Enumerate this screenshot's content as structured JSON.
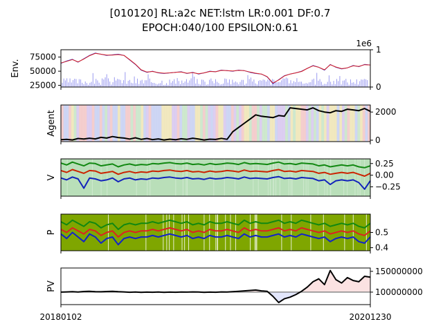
{
  "chart_data": [
    {
      "panel": "env",
      "type": "line",
      "title_line1": "[010120] RL:a2c NET:lstm LR:0.001 DF:0.7",
      "title_line2": "EPOCH:040/100 EPSILON:0.61",
      "ylabel": "Env.",
      "ylim": [
        22000,
        88000
      ],
      "y_ticks": [
        "75000",
        "50000",
        "25000"
      ],
      "y_tick_values": [
        75000,
        50000,
        25000
      ],
      "right_ylim": [
        0,
        1
      ],
      "right_ticks": [
        "1",
        "0"
      ],
      "right_tick_values": [
        1,
        0
      ],
      "right_offset_label": "1e6",
      "series": [
        {
          "name": "price",
          "color": "#2222cc",
          "values": [
            64000,
            68000,
            71000,
            66000,
            72000,
            78000,
            82000,
            80000,
            78000,
            79000,
            80000,
            78000,
            70000,
            62000,
            52000,
            48000,
            50000,
            47000,
            46000,
            47000,
            48000,
            49000,
            46000,
            48000,
            45000,
            47000,
            50000,
            49000,
            52000,
            51000,
            50000,
            52000,
            51000,
            48000,
            46000,
            45000,
            40000,
            28000,
            35000,
            42000,
            45000,
            47000,
            50000,
            55000,
            60000,
            57000,
            52000,
            62000,
            57000,
            54000,
            56000,
            60000,
            58000,
            62000,
            61000
          ]
        },
        {
          "name": "trend",
          "color": "#dd2222",
          "values": [
            64500,
            67500,
            70500,
            66500,
            71500,
            77500,
            81500,
            80000,
            78500,
            78500,
            79500,
            78000,
            70500,
            62500,
            52500,
            48500,
            49500,
            47500,
            46500,
            47000,
            48000,
            48500,
            46500,
            47500,
            45500,
            47000,
            49500,
            49000,
            51500,
            51000,
            50500,
            51500,
            51000,
            48500,
            46500,
            45000,
            40500,
            29000,
            34500,
            41500,
            45000,
            47000,
            49500,
            55000,
            59500,
            57000,
            52500,
            61500,
            57500,
            54500,
            56000,
            59500,
            58500,
            61500,
            61000
          ]
        }
      ]
    },
    {
      "panel": "agent",
      "type": "line",
      "ylabel": "Agent",
      "ylim": [
        -100,
        2500
      ],
      "y_ticks": [
        "2000",
        "0"
      ],
      "y_tick_values": [
        2000,
        0
      ],
      "series": [
        {
          "name": "agent",
          "color": "#000000",
          "values": [
            30,
            60,
            20,
            120,
            80,
            140,
            90,
            200,
            150,
            260,
            190,
            150,
            80,
            170,
            60,
            120,
            40,
            90,
            20,
            70,
            30,
            100,
            60,
            140,
            80,
            20,
            70,
            50,
            130,
            60,
            600,
            900,
            1200,
            1500,
            1800,
            1700,
            1650,
            1600,
            1750,
            1700,
            2300,
            2250,
            2200,
            2150,
            2300,
            2100,
            2000,
            1950,
            2100,
            2050,
            2200,
            2150,
            2100,
            2250,
            2050
          ]
        }
      ]
    },
    {
      "panel": "V",
      "type": "line",
      "ylabel": "V",
      "ylim": [
        -0.45,
        0.35
      ],
      "y_ticks": [
        "0.25",
        "0.00",
        "−0.25"
      ],
      "y_tick_values": [
        0.25,
        0.0,
        -0.25
      ],
      "series": [
        {
          "name": "upper",
          "color": "#118811",
          "values": [
            0.26,
            0.22,
            0.28,
            0.24,
            0.2,
            0.26,
            0.25,
            0.2,
            0.22,
            0.24,
            0.18,
            0.22,
            0.24,
            0.21,
            0.23,
            0.22,
            0.25,
            0.24,
            0.26,
            0.27,
            0.25,
            0.24,
            0.26,
            0.23,
            0.24,
            0.22,
            0.25,
            0.23,
            0.24,
            0.26,
            0.25,
            0.23,
            0.27,
            0.24,
            0.25,
            0.24,
            0.23,
            0.26,
            0.28,
            0.24,
            0.25,
            0.23,
            0.26,
            0.25,
            0.24,
            0.2,
            0.22,
            0.18,
            0.2,
            0.22,
            0.2,
            0.22,
            0.18,
            0.16,
            0.2
          ]
        },
        {
          "name": "mean",
          "color": "#cc2200",
          "values": [
            0.1,
            0.06,
            0.12,
            0.08,
            0.04,
            0.1,
            0.09,
            0.04,
            0.06,
            0.08,
            0.02,
            0.06,
            0.08,
            0.05,
            0.07,
            0.06,
            0.09,
            0.08,
            0.1,
            0.11,
            0.09,
            0.08,
            0.1,
            0.07,
            0.08,
            0.06,
            0.09,
            0.07,
            0.08,
            0.1,
            0.09,
            0.07,
            0.11,
            0.08,
            0.09,
            0.08,
            0.07,
            0.1,
            0.12,
            0.08,
            0.09,
            0.07,
            0.1,
            0.09,
            0.08,
            0.04,
            0.06,
            0.02,
            0.04,
            0.06,
            0.04,
            0.06,
            0.02,
            -0.02,
            0.04
          ]
        },
        {
          "name": "lower",
          "color": "#1122bb",
          "values": [
            -0.06,
            -0.1,
            -0.04,
            -0.08,
            -0.28,
            -0.06,
            -0.08,
            -0.12,
            -0.1,
            -0.06,
            -0.14,
            -0.08,
            -0.06,
            -0.1,
            -0.08,
            -0.09,
            -0.06,
            -0.07,
            -0.05,
            -0.04,
            -0.06,
            -0.07,
            -0.05,
            -0.08,
            -0.07,
            -0.09,
            -0.06,
            -0.08,
            -0.07,
            -0.05,
            -0.06,
            -0.08,
            -0.04,
            -0.07,
            -0.06,
            -0.07,
            -0.08,
            -0.05,
            -0.03,
            -0.07,
            -0.06,
            -0.08,
            -0.05,
            -0.06,
            -0.07,
            -0.12,
            -0.1,
            -0.2,
            -0.12,
            -0.1,
            -0.12,
            -0.1,
            -0.16,
            -0.3,
            -0.12
          ]
        }
      ]
    },
    {
      "panel": "P",
      "type": "line",
      "ylabel": "P",
      "ylim": [
        0.38,
        0.62
      ],
      "y_ticks": [
        "0.5",
        "0.4"
      ],
      "y_tick_values": [
        0.5,
        0.4
      ],
      "series": [
        {
          "name": "upper",
          "color": "#118811",
          "values": [
            0.57,
            0.55,
            0.58,
            0.56,
            0.54,
            0.57,
            0.56,
            0.53,
            0.55,
            0.56,
            0.52,
            0.55,
            0.56,
            0.55,
            0.56,
            0.56,
            0.57,
            0.56,
            0.57,
            0.58,
            0.57,
            0.56,
            0.57,
            0.55,
            0.56,
            0.55,
            0.57,
            0.56,
            0.56,
            0.57,
            0.56,
            0.55,
            0.58,
            0.56,
            0.57,
            0.56,
            0.56,
            0.57,
            0.58,
            0.56,
            0.57,
            0.56,
            0.58,
            0.57,
            0.56,
            0.55,
            0.56,
            0.54,
            0.55,
            0.56,
            0.55,
            0.56,
            0.54,
            0.53,
            0.56
          ]
        },
        {
          "name": "mean",
          "color": "#dd2222",
          "values": [
            0.52,
            0.5,
            0.53,
            0.51,
            0.49,
            0.52,
            0.51,
            0.48,
            0.5,
            0.51,
            0.47,
            0.5,
            0.51,
            0.5,
            0.51,
            0.51,
            0.52,
            0.51,
            0.52,
            0.53,
            0.52,
            0.51,
            0.52,
            0.5,
            0.51,
            0.5,
            0.52,
            0.51,
            0.51,
            0.52,
            0.51,
            0.5,
            0.53,
            0.51,
            0.52,
            0.51,
            0.51,
            0.52,
            0.53,
            0.51,
            0.52,
            0.51,
            0.53,
            0.52,
            0.51,
            0.5,
            0.51,
            0.49,
            0.5,
            0.51,
            0.5,
            0.51,
            0.49,
            0.48,
            0.51
          ]
        },
        {
          "name": "lower",
          "color": "#1122cc",
          "values": [
            0.49,
            0.46,
            0.5,
            0.47,
            0.44,
            0.49,
            0.47,
            0.43,
            0.46,
            0.47,
            0.42,
            0.46,
            0.47,
            0.46,
            0.47,
            0.47,
            0.48,
            0.47,
            0.48,
            0.49,
            0.48,
            0.47,
            0.48,
            0.46,
            0.47,
            0.46,
            0.48,
            0.47,
            0.47,
            0.48,
            0.47,
            0.46,
            0.49,
            0.47,
            0.48,
            0.47,
            0.47,
            0.48,
            0.49,
            0.47,
            0.48,
            0.47,
            0.49,
            0.48,
            0.47,
            0.46,
            0.47,
            0.44,
            0.46,
            0.47,
            0.46,
            0.47,
            0.44,
            0.43,
            0.47
          ]
        }
      ]
    },
    {
      "panel": "PV",
      "type": "line",
      "ylabel": "PV",
      "ylim": [
        70000000,
        158000000
      ],
      "y_ticks": [
        "150000000",
        "100000000"
      ],
      "y_tick_values": [
        150000000,
        100000000
      ],
      "baseline": 100000000,
      "x_ticks": [
        "20180102",
        "20201230"
      ],
      "series": [
        {
          "name": "pv",
          "color": "#000000",
          "values": [
            100000000,
            100500000,
            101000000,
            100200000,
            101500000,
            102000000,
            101200000,
            100800000,
            101500000,
            102000000,
            101000000,
            100500000,
            99800000,
            100300000,
            99500000,
            100000000,
            99700000,
            100200000,
            99600000,
            100100000,
            99800000,
            100400000,
            100000000,
            100600000,
            100200000,
            99600000,
            100100000,
            99800000,
            100600000,
            100200000,
            101000000,
            102000000,
            103000000,
            104000000,
            105000000,
            103000000,
            102000000,
            90000000,
            75000000,
            84000000,
            88000000,
            94000000,
            102000000,
            112000000,
            125000000,
            132000000,
            118000000,
            152000000,
            130000000,
            122000000,
            135000000,
            128000000,
            125000000,
            138000000,
            136000000
          ]
        }
      ]
    }
  ]
}
